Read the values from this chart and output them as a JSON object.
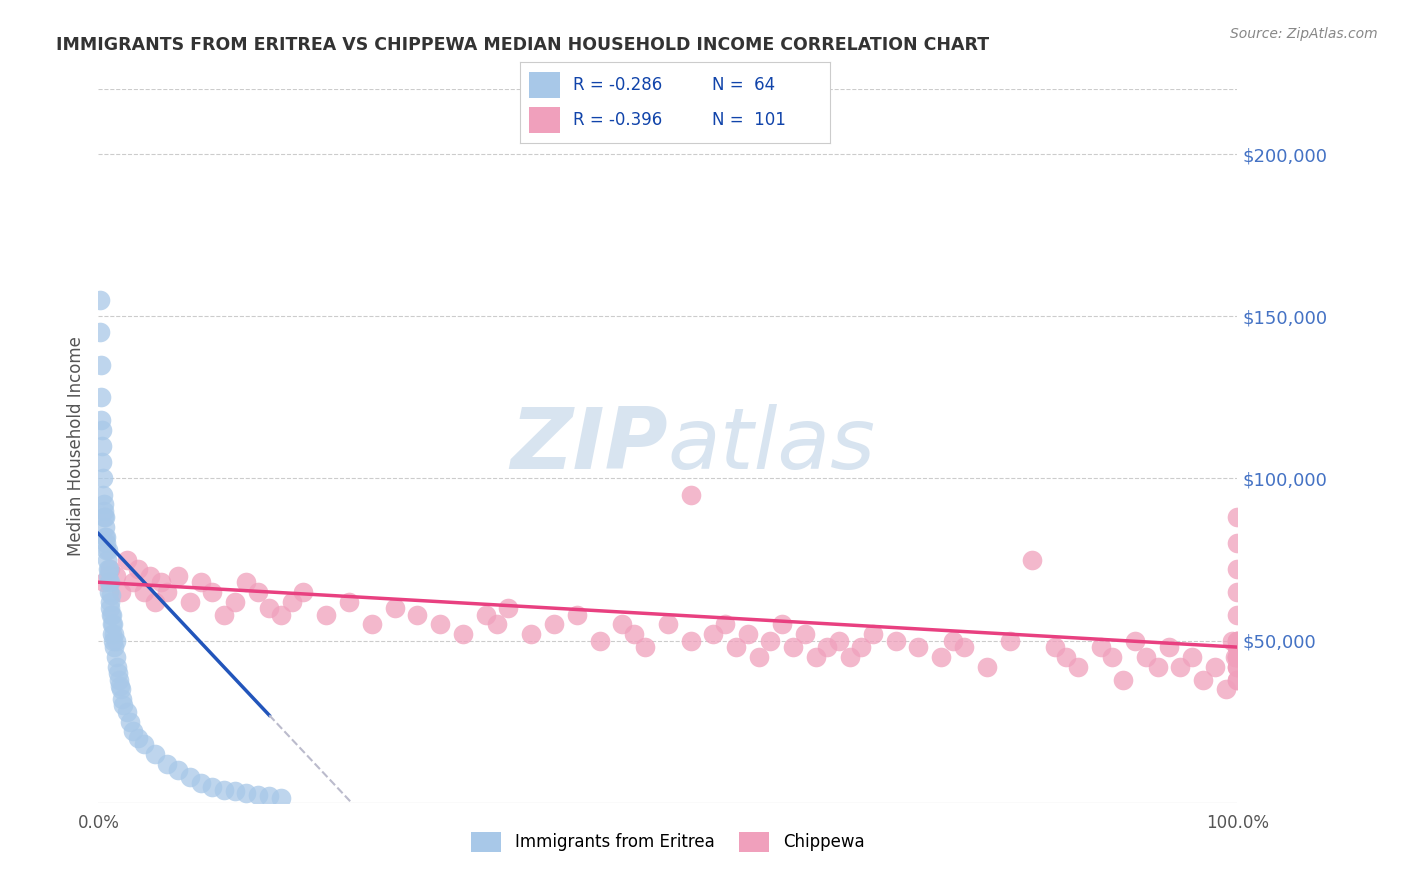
{
  "title": "IMMIGRANTS FROM ERITREA VS CHIPPEWA MEDIAN HOUSEHOLD INCOME CORRELATION CHART",
  "source_text": "Source: ZipAtlas.com",
  "ylabel": "Median Household Income",
  "right_ytick_labels": [
    "$200,000",
    "$150,000",
    "$100,000",
    "$50,000"
  ],
  "right_ytick_values": [
    200000,
    150000,
    100000,
    50000
  ],
  "xlim": [
    0.0,
    100.0
  ],
  "ylim": [
    0,
    220000
  ],
  "legend_labels": [
    "Immigrants from Eritrea",
    "Chippewa"
  ],
  "legend_R": [
    "-0.286",
    "-0.396"
  ],
  "legend_N": [
    "64",
    "101"
  ],
  "blue_color": "#A8C8E8",
  "pink_color": "#F0A0BC",
  "blue_line_color": "#2255BB",
  "pink_line_color": "#E84080",
  "dashed_line_color": "#BBBBCC",
  "title_color": "#333333",
  "axis_label_color": "#555555",
  "right_tick_color": "#4472C4",
  "watermark_color": "#D8E4F0",
  "background_color": "#FFFFFF",
  "blue_scatter_x": [
    0.1,
    0.15,
    0.2,
    0.2,
    0.25,
    0.3,
    0.3,
    0.35,
    0.4,
    0.4,
    0.45,
    0.5,
    0.5,
    0.55,
    0.6,
    0.6,
    0.65,
    0.7,
    0.7,
    0.75,
    0.8,
    0.8,
    0.85,
    0.9,
    0.9,
    0.95,
    1.0,
    1.0,
    1.05,
    1.1,
    1.1,
    1.15,
    1.2,
    1.2,
    1.3,
    1.3,
    1.4,
    1.4,
    1.5,
    1.5,
    1.6,
    1.7,
    1.8,
    1.9,
    2.0,
    2.1,
    2.2,
    2.5,
    2.8,
    3.0,
    3.5,
    4.0,
    5.0,
    6.0,
    7.0,
    8.0,
    9.0,
    10.0,
    11.0,
    12.0,
    13.0,
    14.0,
    15.0,
    16.0
  ],
  "blue_scatter_y": [
    145000,
    155000,
    125000,
    135000,
    118000,
    110000,
    105000,
    115000,
    95000,
    100000,
    90000,
    88000,
    92000,
    85000,
    82000,
    88000,
    80000,
    78000,
    82000,
    75000,
    72000,
    78000,
    70000,
    68000,
    72000,
    65000,
    62000,
    68000,
    60000,
    58000,
    64000,
    55000,
    52000,
    58000,
    50000,
    55000,
    48000,
    52000,
    45000,
    50000,
    42000,
    40000,
    38000,
    36000,
    35000,
    32000,
    30000,
    28000,
    25000,
    22000,
    20000,
    18000,
    15000,
    12000,
    10000,
    8000,
    6000,
    5000,
    4000,
    3500,
    3000,
    2500,
    2000,
    1500
  ],
  "pink_scatter_x": [
    0.5,
    1.0,
    1.5,
    2.0,
    2.5,
    3.0,
    3.5,
    4.0,
    4.5,
    5.0,
    5.5,
    6.0,
    7.0,
    8.0,
    9.0,
    10.0,
    11.0,
    12.0,
    13.0,
    14.0,
    15.0,
    16.0,
    17.0,
    18.0,
    20.0,
    22.0,
    24.0,
    26.0,
    28.0,
    30.0,
    32.0,
    34.0,
    35.0,
    36.0,
    38.0,
    40.0,
    42.0,
    44.0,
    46.0,
    47.0,
    48.0,
    50.0,
    52.0,
    52.0,
    54.0,
    55.0,
    56.0,
    57.0,
    58.0,
    59.0,
    60.0,
    61.0,
    62.0,
    63.0,
    64.0,
    65.0,
    66.0,
    67.0,
    68.0,
    70.0,
    72.0,
    74.0,
    75.0,
    76.0,
    78.0,
    80.0,
    82.0,
    84.0,
    85.0,
    86.0,
    88.0,
    89.0,
    90.0,
    91.0,
    92.0,
    93.0,
    94.0,
    95.0,
    96.0,
    97.0,
    98.0,
    99.0,
    99.5,
    99.8,
    100.0,
    100.0,
    100.0,
    100.0,
    100.0,
    100.0,
    100.0,
    100.0,
    100.0,
    100.0,
    100.0,
    100.0,
    100.0,
    100.0,
    100.0,
    100.0,
    100.0
  ],
  "pink_scatter_y": [
    68000,
    72000,
    70000,
    65000,
    75000,
    68000,
    72000,
    65000,
    70000,
    62000,
    68000,
    65000,
    70000,
    62000,
    68000,
    65000,
    58000,
    62000,
    68000,
    65000,
    60000,
    58000,
    62000,
    65000,
    58000,
    62000,
    55000,
    60000,
    58000,
    55000,
    52000,
    58000,
    55000,
    60000,
    52000,
    55000,
    58000,
    50000,
    55000,
    52000,
    48000,
    55000,
    50000,
    95000,
    52000,
    55000,
    48000,
    52000,
    45000,
    50000,
    55000,
    48000,
    52000,
    45000,
    48000,
    50000,
    45000,
    48000,
    52000,
    50000,
    48000,
    45000,
    50000,
    48000,
    42000,
    50000,
    75000,
    48000,
    45000,
    42000,
    48000,
    45000,
    38000,
    50000,
    45000,
    42000,
    48000,
    42000,
    45000,
    38000,
    42000,
    35000,
    50000,
    45000,
    88000,
    80000,
    72000,
    65000,
    58000,
    50000,
    48000,
    45000,
    42000,
    38000,
    50000,
    45000,
    42000,
    38000,
    50000,
    48000,
    45000
  ]
}
